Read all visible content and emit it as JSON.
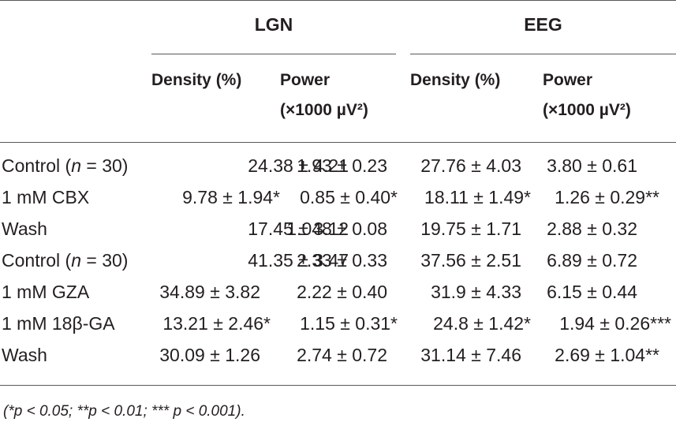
{
  "header": {
    "groups": [
      "LGN",
      "EEG"
    ],
    "columns": [
      {
        "line1": "Density (%)",
        "line2": ""
      },
      {
        "line1": "Power",
        "line2": "(×1000 µV²)"
      },
      {
        "line1": "Density (%)",
        "line2": ""
      },
      {
        "line1": "Power",
        "line2": "(×1000 µV²)"
      }
    ]
  },
  "rows": [
    {
      "label": "Control (n = 30)",
      "cells": [
        "24.38 ± 4.21",
        "1.93 ± 0.23",
        "27.76 ± 4.03",
        "3.80 ± 0.61"
      ]
    },
    {
      "label": "1 mM CBX",
      "cells": [
        "9.78 ± 1.94*",
        "0.85 ± 0.40*",
        "18.11 ± 1.49*",
        "1.26 ± 0.29**"
      ]
    },
    {
      "label": "Wash",
      "cells": [
        "17.45 ± 3.12",
        "1.048 ± 0.08",
        "19.75 ± 1.71",
        "2.88 ± 0.32"
      ]
    },
    {
      "label": "Control (n = 30)",
      "cells": [
        "41.35 ± 3.47",
        "2.33 ± 0.33",
        "37.56 ± 2.51",
        "6.89 ± 0.72"
      ]
    },
    {
      "label": "1 mM GZA",
      "cells": [
        "34.89 ± 3.82",
        "2.22 ± 0.40",
        "31.9 ± 4.33",
        "6.15 ± 0.44"
      ]
    },
    {
      "label": "1 mM 18β-GA",
      "cells": [
        "13.21 ± 2.46*",
        "1.15 ± 0.31*",
        "24.8 ± 1.42*",
        "1.94 ± 0.26***"
      ]
    },
    {
      "label": "Wash",
      "cells": [
        "30.09 ± 1.26",
        "2.74 ± 0.72",
        "31.14 ± 7.46",
        "2.69 ± 1.04**"
      ]
    }
  ],
  "footnote": "(*p < 0.05; **p < 0.01; *** p < 0.001)."
}
